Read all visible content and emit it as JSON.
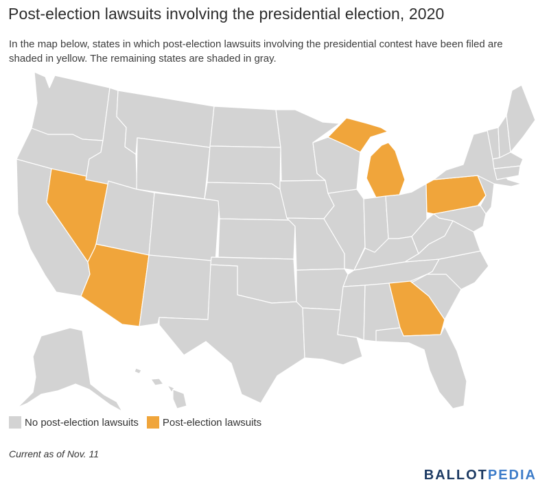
{
  "title": "Post-election lawsuits involving the presidential election, 2020",
  "subtitle": "In the map below, states in which post-election lawsuits involving the presidential contest have been filed are shaded in yellow. The remaining states are shaded in gray.",
  "legend": {
    "items": [
      {
        "label": "No post-election lawsuits",
        "color": "#d3d3d3"
      },
      {
        "label": "Post-election lawsuits",
        "color": "#f0a53b"
      }
    ]
  },
  "note": "Current as of Nov. 11",
  "logo": {
    "part1": "BALLOT",
    "part2": "PEDIA"
  },
  "colors": {
    "gray": "#d3d3d3",
    "highlight": "#f0a53b",
    "border": "#ffffff"
  },
  "map_data": {
    "states_with_lawsuits": [
      "NV",
      "AZ",
      "MI",
      "PA",
      "GA"
    ]
  }
}
